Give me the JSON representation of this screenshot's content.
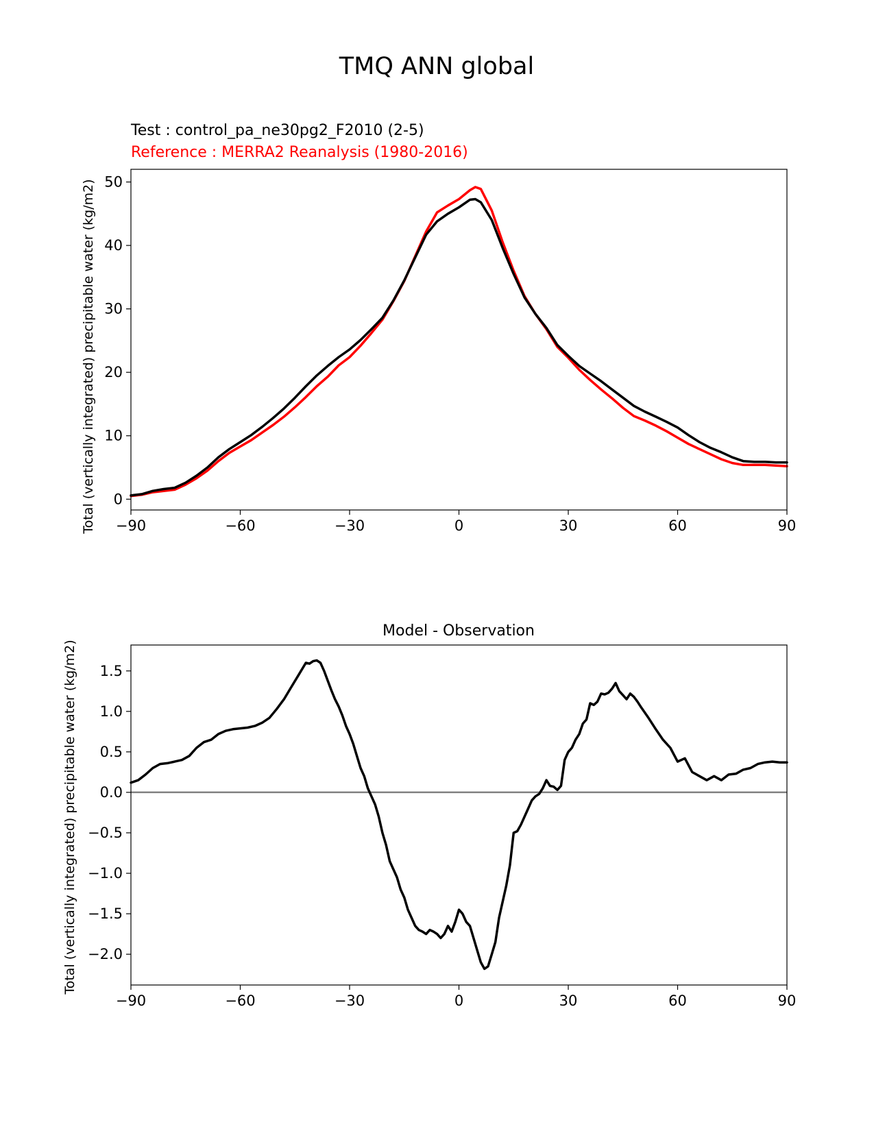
{
  "figure_title": "TMQ ANN global",
  "chart_data": [
    {
      "type": "line",
      "test_label": "Test : control_pa_ne30pg2_F2010 (2-5)",
      "reference_label": "Reference : MERRA2 Reanalysis (1980-2016)",
      "xlabel": "",
      "ylabel": "Total (vertically integrated) precipitable water (kg/m2)",
      "xlim": [
        -90,
        90
      ],
      "ylim": [
        -1.7,
        52
      ],
      "xticks": [
        -90,
        -60,
        -30,
        0,
        30,
        60,
        90
      ],
      "xtick_labels": [
        "−90",
        "−60",
        "−30",
        "0",
        "30",
        "60",
        "90"
      ],
      "yticks": [
        0,
        10,
        20,
        30,
        40,
        50
      ],
      "ytick_labels": [
        "0",
        "10",
        "20",
        "30",
        "40",
        "50"
      ],
      "series": [
        {
          "name": "Reference : MERRA2 Reanalysis (1980-2016)",
          "color": "#ff0000",
          "x": [
            -90,
            -87,
            -84,
            -81,
            -78,
            -75,
            -72,
            -69,
            -66,
            -63,
            -60,
            -57,
            -54,
            -51,
            -48,
            -45,
            -42,
            -39,
            -36,
            -33,
            -30,
            -27,
            -24,
            -21,
            -18,
            -15,
            -12,
            -9,
            -6,
            -3,
            0,
            3,
            4.5,
            6,
            9,
            12,
            15,
            18,
            21,
            24,
            27,
            30,
            33,
            36,
            39,
            42,
            45,
            48,
            51,
            54,
            57,
            60,
            63,
            66,
            69,
            72,
            75,
            78,
            81,
            84,
            87,
            90
          ],
          "y": [
            0.5,
            0.7,
            1.1,
            1.3,
            1.5,
            2.3,
            3.3,
            4.5,
            6.0,
            7.3,
            8.3,
            9.3,
            10.5,
            11.7,
            13.0,
            14.5,
            16.1,
            17.8,
            19.3,
            21.1,
            22.4,
            24.2,
            26.2,
            28.3,
            31.2,
            34.4,
            38.3,
            42.2,
            45.2,
            46.3,
            47.3,
            48.7,
            49.2,
            48.9,
            45.5,
            40.5,
            36.0,
            32.0,
            29.2,
            26.8,
            24.0,
            22.3,
            20.4,
            18.8,
            17.3,
            15.9,
            14.4,
            13.1,
            12.4,
            11.6,
            10.7,
            9.7,
            8.7,
            7.9,
            7.1,
            6.3,
            5.7,
            5.4,
            5.4,
            5.4,
            5.3,
            5.2
          ]
        },
        {
          "name": "Test : control_pa_ne30pg2_F2010 (2-5)",
          "color": "#000000",
          "x": [
            -90,
            -87,
            -84,
            -81,
            -78,
            -75,
            -72,
            -69,
            -66,
            -63,
            -60,
            -57,
            -54,
            -51,
            -48,
            -45,
            -42,
            -39,
            -36,
            -33,
            -30,
            -27,
            -24,
            -21,
            -18,
            -15,
            -12,
            -9,
            -6,
            -3,
            0,
            3,
            4.5,
            6,
            9,
            12,
            15,
            18,
            21,
            24,
            27,
            30,
            33,
            36,
            39,
            42,
            45,
            48,
            51,
            54,
            57,
            60,
            63,
            66,
            69,
            72,
            75,
            78,
            81,
            84,
            87,
            90
          ],
          "y": [
            0.6,
            0.8,
            1.3,
            1.6,
            1.8,
            2.6,
            3.7,
            5.0,
            6.6,
            7.9,
            9.0,
            10.1,
            11.4,
            12.8,
            14.3,
            16.0,
            17.8,
            19.5,
            21.0,
            22.4,
            23.6,
            25.1,
            26.8,
            28.6,
            31.3,
            34.5,
            38.1,
            41.7,
            43.8,
            45.0,
            46.0,
            47.2,
            47.3,
            46.8,
            44.0,
            39.6,
            35.5,
            31.8,
            29.2,
            27.0,
            24.3,
            22.6,
            21.0,
            19.8,
            18.6,
            17.3,
            16.0,
            14.7,
            13.8,
            13.0,
            12.2,
            11.3,
            10.1,
            9.0,
            8.1,
            7.4,
            6.6,
            6.0,
            5.9,
            5.9,
            5.8,
            5.8
          ]
        }
      ]
    },
    {
      "type": "line",
      "title": "Model - Observation",
      "xlabel": "",
      "ylabel": "Total (vertically integrated) precipitable water (kg/m2)",
      "xlim": [
        -90,
        90
      ],
      "ylim": [
        -2.38,
        1.82
      ],
      "xticks": [
        -90,
        -60,
        -30,
        0,
        30,
        60,
        90
      ],
      "xtick_labels": [
        "−90",
        "−60",
        "−30",
        "0",
        "30",
        "60",
        "90"
      ],
      "yticks": [
        -2.0,
        -1.5,
        -1.0,
        -0.5,
        0.0,
        0.5,
        1.0,
        1.5
      ],
      "ytick_labels": [
        "−2.0",
        "−1.5",
        "−1.0",
        "−0.5",
        "0.0",
        "0.5",
        "1.0",
        "1.5"
      ],
      "zero_line": {
        "y": 0,
        "color": "#808080"
      },
      "series": [
        {
          "name": "Model - Observation",
          "color": "#000000",
          "x": [
            -90,
            -88,
            -86,
            -84,
            -82,
            -80,
            -78,
            -76,
            -74,
            -72,
            -70,
            -68,
            -66,
            -64,
            -62,
            -60,
            -58,
            -56,
            -54,
            -52,
            -50,
            -48,
            -46,
            -44,
            -42,
            -41,
            -40,
            -39,
            -38,
            -37,
            -36,
            -35,
            -34,
            -33,
            -32,
            -31,
            -30,
            -29,
            -28,
            -27,
            -26,
            -25,
            -24,
            -23,
            -22,
            -21,
            -20,
            -19,
            -18,
            -17,
            -16,
            -15,
            -14,
            -13,
            -12,
            -11,
            -10,
            -9,
            -8,
            -7,
            -6,
            -5,
            -4,
            -3,
            -2,
            -1,
            0,
            1,
            2,
            3,
            4,
            5,
            6,
            7,
            8,
            9,
            10,
            11,
            12,
            13,
            14,
            15,
            16,
            17,
            18,
            19,
            20,
            21,
            22,
            23,
            24,
            25,
            26,
            27,
            28,
            29,
            30,
            31,
            32,
            33,
            34,
            35,
            36,
            37,
            38,
            39,
            40,
            41,
            42,
            43,
            44,
            45,
            46,
            47,
            48,
            49,
            50,
            52,
            54,
            56,
            58,
            60,
            62,
            64,
            66,
            68,
            70,
            72,
            74,
            76,
            78,
            80,
            82,
            84,
            86,
            88,
            90
          ],
          "y": [
            0.12,
            0.15,
            0.22,
            0.3,
            0.35,
            0.36,
            0.38,
            0.4,
            0.45,
            0.55,
            0.62,
            0.65,
            0.72,
            0.76,
            0.78,
            0.79,
            0.8,
            0.82,
            0.86,
            0.92,
            1.03,
            1.15,
            1.3,
            1.45,
            1.6,
            1.59,
            1.62,
            1.63,
            1.6,
            1.5,
            1.38,
            1.26,
            1.15,
            1.06,
            0.95,
            0.82,
            0.72,
            0.6,
            0.45,
            0.3,
            0.2,
            0.05,
            -0.05,
            -0.15,
            -0.3,
            -0.5,
            -0.65,
            -0.85,
            -0.95,
            -1.05,
            -1.2,
            -1.3,
            -1.45,
            -1.55,
            -1.65,
            -1.7,
            -1.72,
            -1.75,
            -1.7,
            -1.72,
            -1.75,
            -1.8,
            -1.75,
            -1.65,
            -1.72,
            -1.6,
            -1.45,
            -1.5,
            -1.6,
            -1.65,
            -1.8,
            -1.95,
            -2.1,
            -2.18,
            -2.15,
            -2.0,
            -1.85,
            -1.55,
            -1.35,
            -1.15,
            -0.9,
            -0.5,
            -0.48,
            -0.4,
            -0.3,
            -0.2,
            -0.1,
            -0.05,
            -0.02,
            0.05,
            0.15,
            0.08,
            0.07,
            0.03,
            0.08,
            0.4,
            0.5,
            0.55,
            0.65,
            0.72,
            0.85,
            0.9,
            1.1,
            1.08,
            1.12,
            1.22,
            1.21,
            1.23,
            1.28,
            1.35,
            1.25,
            1.2,
            1.15,
            1.22,
            1.18,
            1.12,
            1.05,
            0.92,
            0.78,
            0.65,
            0.55,
            0.38,
            0.42,
            0.25,
            0.2,
            0.15,
            0.2,
            0.15,
            0.22,
            0.23,
            0.28,
            0.3,
            0.35,
            0.37,
            0.38,
            0.37,
            0.37
          ]
        }
      ]
    }
  ]
}
